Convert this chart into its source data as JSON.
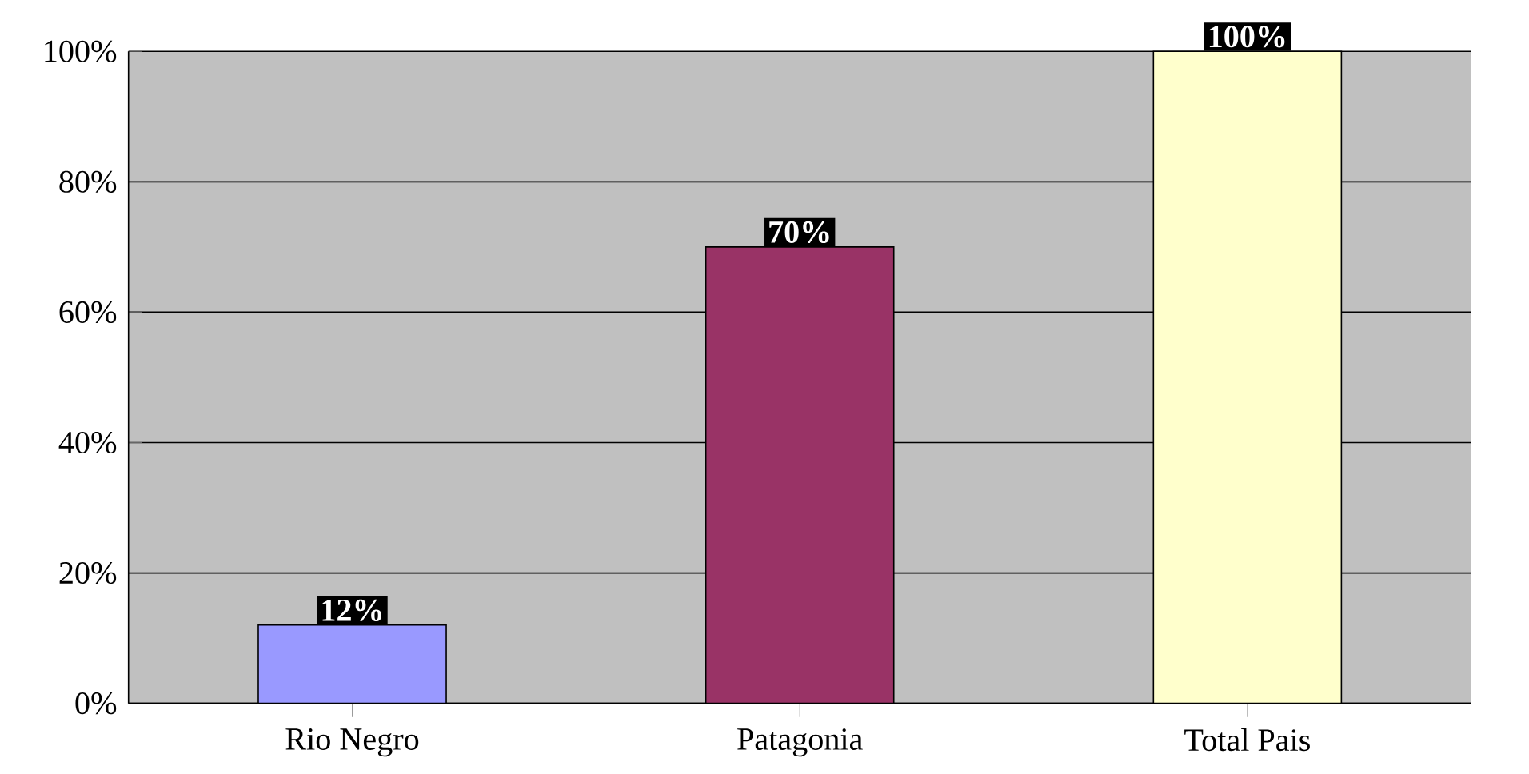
{
  "chart_data": {
    "type": "bar",
    "categories": [
      "Rio Negro",
      "Patagonia",
      "Total Pais"
    ],
    "values": [
      12,
      70,
      100
    ],
    "colors": [
      "#9999ff",
      "#993366",
      "#ffffcc"
    ],
    "value_labels": [
      "12%",
      "70%",
      "100%"
    ],
    "ylim": [
      0,
      100
    ],
    "yticks": [
      {
        "value": 0,
        "label": "0%"
      },
      {
        "value": 20,
        "label": "20%"
      },
      {
        "value": 40,
        "label": "40%"
      },
      {
        "value": 60,
        "label": "60%"
      },
      {
        "value": 80,
        "label": "80%"
      },
      {
        "value": 100,
        "label": "100%"
      }
    ],
    "grid": "y"
  }
}
